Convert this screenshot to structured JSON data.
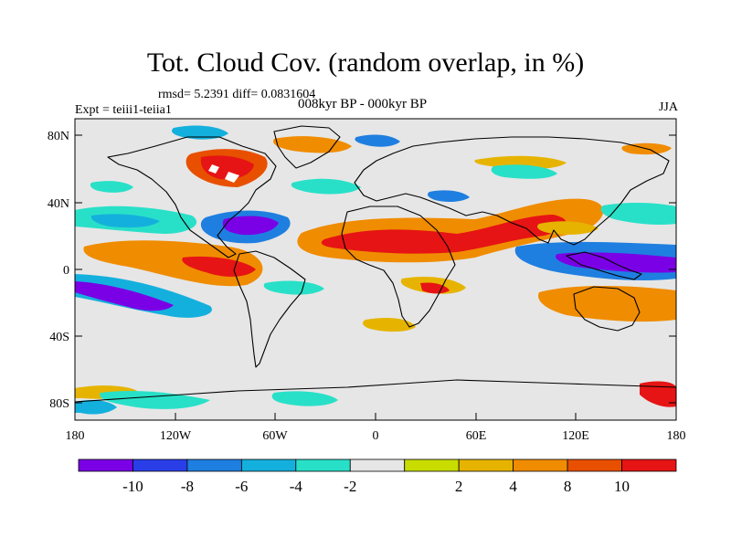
{
  "title": "Tot. Cloud Cov. (random overlap, in %)",
  "stats_line": "rmsd= 5.2391 diff= 0.0831604",
  "experiment": "Expt = teiii1-teiia1",
  "period": "008kyr BP - 000kyr BP",
  "season": "JJA",
  "lat_ticks": [
    "80N",
    "40N",
    "0",
    "40S",
    "80S"
  ],
  "lon_ticks": [
    "180",
    "120W",
    "60W",
    "0",
    "60E",
    "120E",
    "180"
  ],
  "colorbar": {
    "colors": [
      "#7a00e6",
      "#2a3ee8",
      "#1f7fe0",
      "#14b0dd",
      "#28e0c8",
      "#e6e6e6",
      "#c8dc00",
      "#e6b400",
      "#f08c00",
      "#e85000",
      "#e61414"
    ],
    "labels": [
      "-10",
      "-8",
      "-6",
      "-4",
      "-2",
      "2",
      "4",
      "8",
      "10"
    ]
  }
}
